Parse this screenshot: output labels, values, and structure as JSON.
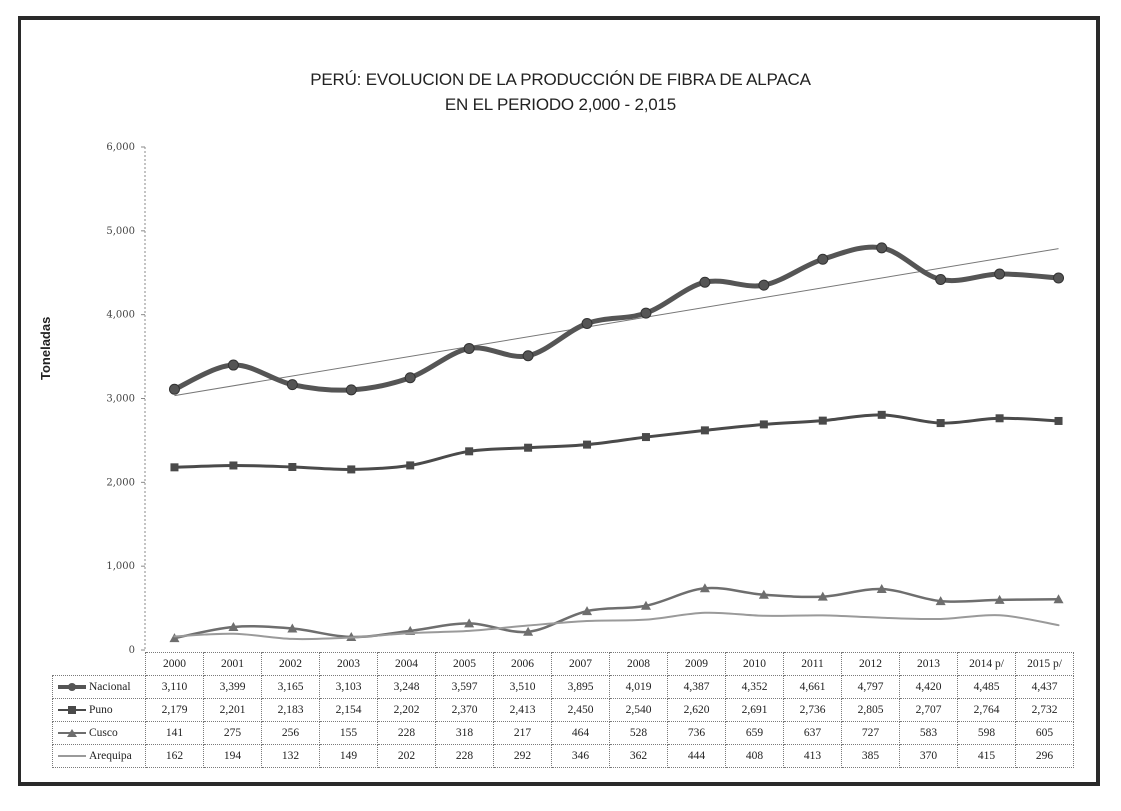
{
  "title_line1": "PERÚ: EVOLUCION DE LA PRODUCCIÓN DE FIBRA DE ALPACA",
  "title_line2": "EN EL PERIODO 2,000 - 2,015",
  "chart_data": {
    "type": "line",
    "title": "PERÚ: EVOLUCION DE LA PRODUCCIÓN DE FIBRA DE ALPACA EN EL PERIODO 2,000 - 2,015",
    "xlabel": "",
    "ylabel": "Toneladas",
    "ylim": [
      0,
      6000
    ],
    "yticks": [
      "0",
      "1,000",
      "2,000",
      "3,000",
      "4,000",
      "5,000",
      "6,000"
    ],
    "categories": [
      "2000",
      "2001",
      "2002",
      "2003",
      "2004",
      "2005",
      "2006",
      "2007",
      "2008",
      "2009",
      "2010",
      "2011",
      "2012",
      "2013",
      "2014 p/",
      "2015 p/"
    ],
    "grid": false,
    "trendline": {
      "series": "Nacional",
      "type": "linear"
    },
    "series": [
      {
        "name": "Nacional",
        "color": "#555555",
        "marker": "circle",
        "values": [
          3110,
          3399,
          3165,
          3103,
          3248,
          3597,
          3510,
          3895,
          4019,
          4387,
          4352,
          4661,
          4797,
          4420,
          4485,
          4437
        ],
        "labels": [
          "3,110",
          "3,399",
          "3,165",
          "3,103",
          "3,248",
          "3,597",
          "3,510",
          "3,895",
          "4,019",
          "4,387",
          "4,352",
          "4,661",
          "4,797",
          "4,420",
          "4,485",
          "4,437"
        ]
      },
      {
        "name": "Puno",
        "color": "#4a4a4a",
        "marker": "square",
        "values": [
          2179,
          2201,
          2183,
          2154,
          2202,
          2370,
          2413,
          2450,
          2540,
          2620,
          2691,
          2736,
          2805,
          2707,
          2764,
          2732
        ],
        "labels": [
          "2,179",
          "2,201",
          "2,183",
          "2,154",
          "2,202",
          "2,370",
          "2,413",
          "2,450",
          "2,540",
          "2,620",
          "2,691",
          "2,736",
          "2,805",
          "2,707",
          "2,764",
          "2,732"
        ]
      },
      {
        "name": "Cusco",
        "color": "#6e6e6e",
        "marker": "triangle",
        "values": [
          141,
          275,
          256,
          155,
          228,
          318,
          217,
          464,
          528,
          736,
          659,
          637,
          727,
          583,
          598,
          605
        ],
        "labels": [
          "141",
          "275",
          "256",
          "155",
          "228",
          "318",
          "217",
          "464",
          "528",
          "736",
          "659",
          "637",
          "727",
          "583",
          "598",
          "605"
        ]
      },
      {
        "name": "Arequipa",
        "color": "#9a9a9a",
        "marker": "none",
        "values": [
          162,
          194,
          132,
          149,
          202,
          228,
          292,
          346,
          362,
          444,
          408,
          413,
          385,
          370,
          415,
          296
        ],
        "labels": [
          "162",
          "194",
          "132",
          "149",
          "202",
          "228",
          "292",
          "346",
          "362",
          "444",
          "408",
          "413",
          "385",
          "370",
          "415",
          "296"
        ]
      }
    ]
  }
}
